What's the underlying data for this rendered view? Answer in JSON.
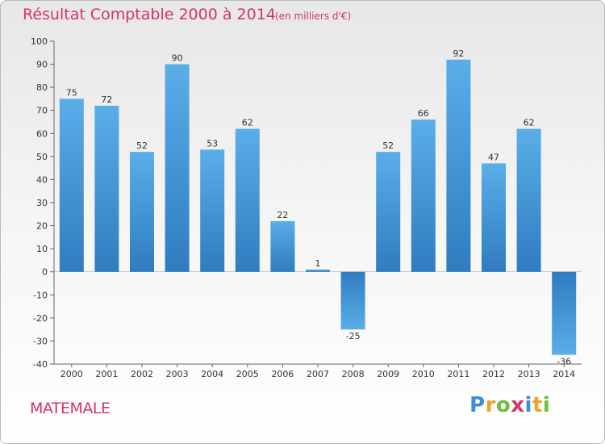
{
  "chart_data": {
    "type": "bar",
    "title": "Résultat Comptable 2000 à 2014",
    "subtitle": "(en milliers d'€)",
    "categories": [
      "2000",
      "2001",
      "2002",
      "2003",
      "2004",
      "2005",
      "2006",
      "2007",
      "2008",
      "2009",
      "2010",
      "2011",
      "2012",
      "2013",
      "2014"
    ],
    "values": [
      75,
      72,
      52,
      90,
      53,
      62,
      22,
      1,
      -25,
      52,
      66,
      92,
      47,
      62,
      -36
    ],
    "ylim": [
      -40,
      100
    ],
    "yticks": [
      -40,
      -30,
      -20,
      -10,
      0,
      10,
      20,
      30,
      40,
      50,
      60,
      70,
      80,
      90,
      100
    ],
    "grid": false,
    "bar_color_light": "#5aaee8",
    "bar_color_dark": "#2f7cc0"
  },
  "commune": "MATEMALE",
  "logo": {
    "letters": [
      "P",
      "r",
      "o",
      "x",
      "i",
      "t",
      "i"
    ]
  }
}
